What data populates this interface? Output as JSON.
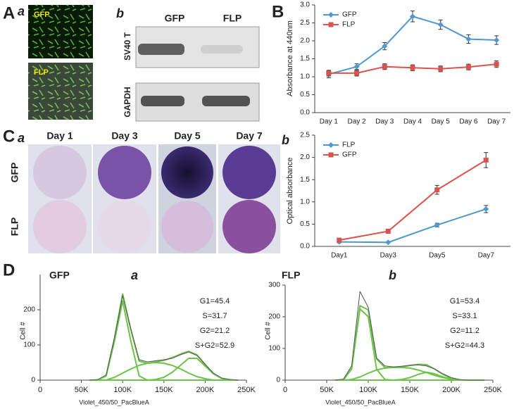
{
  "panel_A": {
    "letter": "A",
    "sub": "a",
    "images": [
      "GFP",
      "FLP"
    ]
  },
  "blot": {
    "sub": "b",
    "columns": [
      "GFP",
      "FLP"
    ],
    "rows": [
      "SV40 T",
      "GAPDH"
    ]
  },
  "panel_B": {
    "letter": "B"
  },
  "panel_C": {
    "letter": "C",
    "sub": "a",
    "columns": [
      "Day 1",
      "Day 3",
      "Day 5",
      "Day 7"
    ],
    "rows": [
      "GFP",
      "FLP"
    ],
    "chart_sub": "b"
  },
  "panel_D": {
    "letter": "D"
  },
  "chart_data": [
    {
      "type": "line",
      "y_label": "Absorbance at 440nm",
      "legend": "upper left",
      "categories": [
        "Day 1",
        "Day 2",
        "Day 3",
        "Day 4",
        "Day 5",
        "Day 6",
        "Day 7"
      ],
      "ylim": [
        0,
        3
      ],
      "yticks": [
        {
          "value": 0,
          "label": "0.0"
        },
        {
          "value": 0.5,
          "label": "0.5"
        },
        {
          "value": 1,
          "label": "1.0"
        },
        {
          "value": 1.5,
          "label": "1.5"
        },
        {
          "value": 2,
          "label": "2.0"
        },
        {
          "value": 2.5,
          "label": "2.5"
        },
        {
          "value": 3,
          "label": "3.0"
        }
      ],
      "series": [
        {
          "name": "GFP",
          "color": "#4f97cf",
          "marker": "diamond",
          "values": [
            1.07,
            1.28,
            1.85,
            2.68,
            2.45,
            2.05,
            2.02
          ],
          "errors": [
            0.1,
            0.08,
            0.1,
            0.15,
            0.13,
            0.12,
            0.12
          ]
        },
        {
          "name": "FLP",
          "color": "#d9534f",
          "marker": "square",
          "values": [
            1.1,
            1.1,
            1.28,
            1.25,
            1.22,
            1.27,
            1.35
          ],
          "errors": [
            0.08,
            0.08,
            0.08,
            0.08,
            0.08,
            0.08,
            0.09
          ]
        }
      ]
    },
    {
      "type": "line",
      "y_label": "Optical absorbance",
      "legend": "upper left",
      "categories": [
        "Day1",
        "Day3",
        "Day5",
        "Day7"
      ],
      "ylim": [
        0,
        2.5
      ],
      "yticks": [
        {
          "value": 0,
          "label": "0.0"
        },
        {
          "value": 0.5,
          "label": "0.5"
        },
        {
          "value": 1,
          "label": "1.0"
        },
        {
          "value": 1.5,
          "label": "1.5"
        },
        {
          "value": 2,
          "label": "2.0"
        },
        {
          "value": 2.5,
          "label": "2.5"
        }
      ],
      "series": [
        {
          "name": "FLP",
          "color": "#4f97cf",
          "marker": "diamond",
          "values": [
            0.1,
            0.09,
            0.48,
            0.84
          ],
          "errors": [
            0.02,
            0.01,
            0.04,
            0.08
          ]
        },
        {
          "name": "GFP",
          "color": "#d9534f",
          "marker": "square",
          "values": [
            0.14,
            0.34,
            1.27,
            1.94
          ],
          "errors": [
            0.03,
            0.02,
            0.1,
            0.17
          ]
        }
      ]
    },
    {
      "type": "histogram",
      "label": "GFP",
      "sub": "a",
      "x_label": "Violet_450/50_PacBlueA",
      "y_label": "Cell #",
      "annotations": [
        "G1=45.4",
        "S=31.7",
        "G2=21.2",
        "S+G2=52.9"
      ],
      "xlim": [
        0,
        250000
      ],
      "ylim": [
        0,
        300
      ],
      "xticks": [
        0,
        {
          "value": 50000,
          "label": "50K"
        },
        {
          "value": 100000,
          "label": "100K"
        },
        {
          "value": 150000,
          "label": "150K"
        },
        {
          "value": 200000,
          "label": "200K"
        },
        {
          "value": 250000,
          "label": "250K"
        }
      ],
      "yticks": [
        0,
        100,
        200
      ],
      "x": [
        60000,
        70000,
        80000,
        90000,
        100000,
        110000,
        120000,
        130000,
        140000,
        150000,
        160000,
        170000,
        180000,
        190000,
        200000,
        210000,
        220000,
        230000,
        240000
      ],
      "series": [
        {
          "color": "#555555",
          "values": [
            0,
            2,
            15,
            120,
            240,
            145,
            58,
            52,
            55,
            58,
            62,
            72,
            80,
            70,
            45,
            20,
            6,
            2,
            0
          ]
        },
        {
          "color": "#6cc24a",
          "values": [
            0,
            0,
            12,
            110,
            225,
            110,
            12,
            0,
            0,
            0,
            0,
            0,
            0,
            0,
            0,
            0,
            0,
            0,
            0
          ]
        },
        {
          "color": "#6cc24a",
          "values": [
            0,
            0,
            0,
            8,
            20,
            32,
            42,
            48,
            50,
            48,
            42,
            32,
            20,
            10,
            4,
            0,
            0,
            0,
            0
          ]
        },
        {
          "color": "#6cc24a",
          "values": [
            0,
            0,
            0,
            0,
            0,
            0,
            0,
            0,
            2,
            8,
            22,
            42,
            62,
            62,
            40,
            18,
            5,
            0,
            0
          ]
        },
        {
          "color": "#6cc24a",
          "values": [
            0,
            0,
            12,
            118,
            245,
            142,
            54,
            48,
            52,
            56,
            64,
            74,
            82,
            72,
            44,
            18,
            5,
            0,
            0
          ]
        }
      ]
    },
    {
      "type": "histogram",
      "label": "FLP",
      "sub": "b",
      "x_label": "Violet_450/50_PacBlueA",
      "y_label": "Cell #",
      "annotations": [
        "G1=53.4",
        "S=33.1",
        "G2=11.2",
        "S+G2=44.3"
      ],
      "xlim": [
        0,
        250000
      ],
      "ylim": [
        0,
        300
      ],
      "xticks": [
        0,
        {
          "value": 50000,
          "label": "50K"
        },
        {
          "value": 100000,
          "label": "100K"
        },
        {
          "value": 150000,
          "label": "150K"
        },
        {
          "value": 200000,
          "label": "200K"
        },
        {
          "value": 250000,
          "label": "250K"
        }
      ],
      "yticks": [
        0,
        100,
        200,
        300
      ],
      "x": [
        60000,
        70000,
        80000,
        90000,
        100000,
        110000,
        120000,
        130000,
        140000,
        150000,
        160000,
        170000,
        180000,
        190000,
        200000,
        210000,
        220000,
        230000,
        240000
      ],
      "series": [
        {
          "color": "#555555",
          "values": [
            0,
            3,
            45,
            280,
            230,
            70,
            45,
            42,
            44,
            47,
            48,
            45,
            35,
            20,
            8,
            2,
            0,
            0,
            0
          ]
        },
        {
          "color": "#6cc24a",
          "values": [
            0,
            0,
            35,
            225,
            200,
            35,
            2,
            0,
            0,
            0,
            0,
            0,
            0,
            0,
            0,
            0,
            0,
            0,
            0
          ]
        },
        {
          "color": "#6cc24a",
          "values": [
            0,
            0,
            2,
            10,
            22,
            32,
            38,
            40,
            40,
            38,
            32,
            24,
            15,
            8,
            3,
            0,
            0,
            0,
            0
          ]
        },
        {
          "color": "#6cc24a",
          "values": [
            0,
            0,
            0,
            0,
            0,
            0,
            0,
            0,
            2,
            8,
            18,
            25,
            20,
            10,
            3,
            0,
            0,
            0,
            0
          ]
        },
        {
          "color": "#6cc24a",
          "values": [
            0,
            0,
            37,
            235,
            222,
            67,
            40,
            40,
            42,
            46,
            50,
            49,
            35,
            18,
            6,
            0,
            0,
            0,
            0
          ]
        }
      ]
    }
  ]
}
